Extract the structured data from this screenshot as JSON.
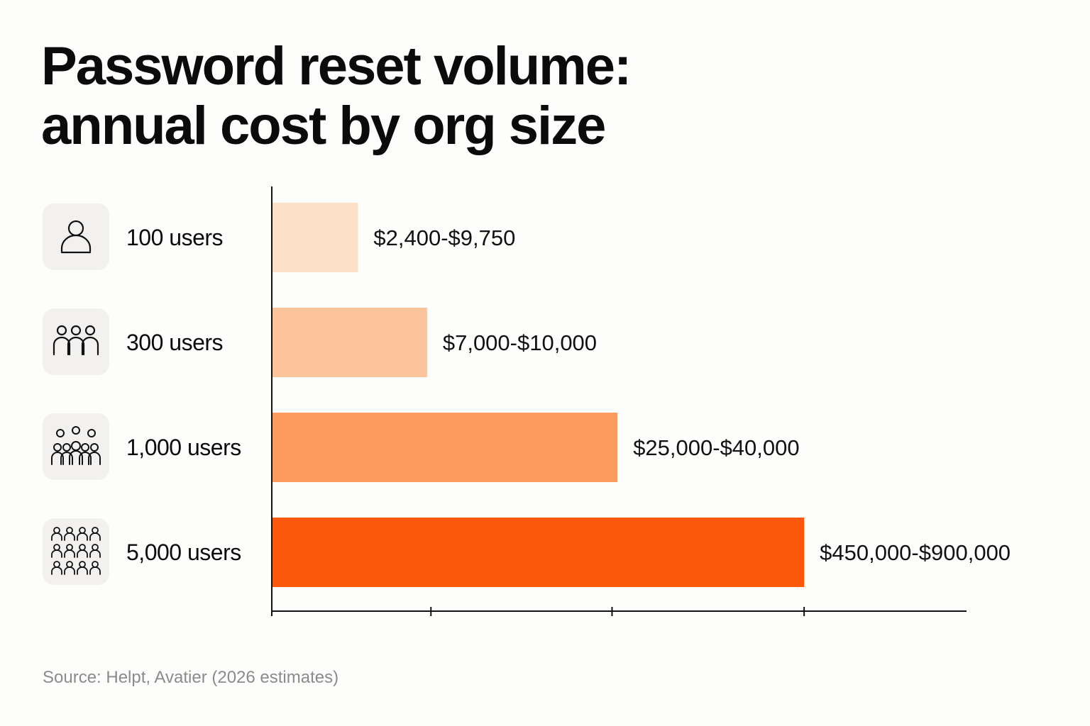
{
  "title": {
    "line1": "Password reset volume:",
    "line2": "annual cost by org size"
  },
  "source": "Source: Helpt, Avatier (2026 estimates)",
  "rows": [
    {
      "label": "100 users",
      "icon": "single-person-icon"
    },
    {
      "label": "300 users",
      "icon": "three-people-icon"
    },
    {
      "label": "1,000 users",
      "icon": "group-people-icon"
    },
    {
      "label": "5,000 users",
      "icon": "crowd-people-icon"
    }
  ],
  "colors": {
    "bars": [
      "#fde0c8",
      "#fcc49c",
      "#fc9b5c",
      "#fa580a"
    ],
    "axis": "#111111",
    "icon_tile": "#f3f1ef"
  },
  "chart_data": {
    "type": "bar",
    "orientation": "horizontal",
    "title": "Password reset volume: annual cost by org size",
    "categories": [
      "100 users",
      "300 users",
      "1,000 users",
      "5,000 users"
    ],
    "data_labels": [
      "$2,400-$9,750",
      "$7,000-$10,000",
      "$25,000-$40,000",
      "$450,000-$900,000"
    ],
    "values": [
      0.157,
      0.283,
      0.63,
      0.97
    ],
    "value_scale": "relative, unlabeled axis (fraction of full axis length)",
    "xlim": [
      0,
      1.125
    ],
    "x_ticks": [
      0,
      0.29,
      0.62,
      0.97
    ],
    "x_tick_labels": [],
    "grid": false,
    "legend": "none"
  }
}
